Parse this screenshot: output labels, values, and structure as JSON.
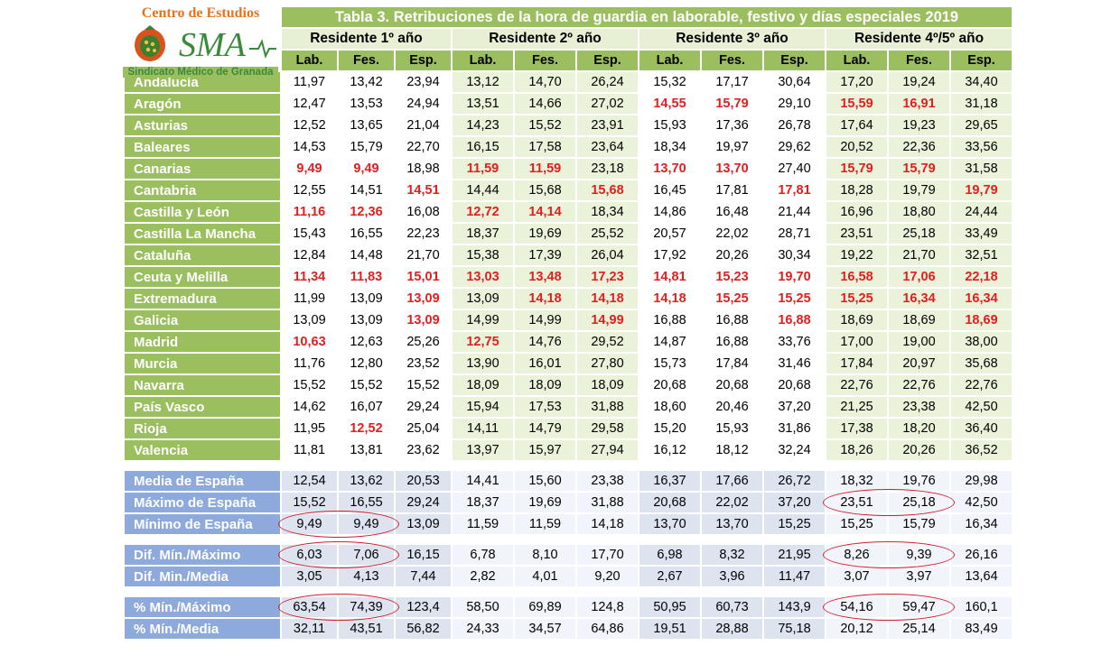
{
  "logo": {
    "top_text": "Centro de Estudios",
    "brand": "SMA",
    "bottom_text": "Sindicato Médico de Granada"
  },
  "title": "Tabla 3. Retribuciones de la hora de guardia en laborable, festivo y días especiales 2019",
  "groups": [
    "Residente 1º año",
    "Residente 2º año",
    "Residente 3º año",
    "Residente 4º/5º año"
  ],
  "subheaders": [
    "Lab.",
    "Fes.",
    "Esp."
  ],
  "colors": {
    "green": "#9bbf5e",
    "light_green": "#eaf2da",
    "blue": "#8ea9db",
    "light_blue": "#dde4f0",
    "red_value": "#e02020",
    "circle": "#d02030"
  },
  "rows": [
    {
      "region": "Andalucía",
      "values": [
        "11,97",
        "13,42",
        "23,94",
        "13,12",
        "14,70",
        "26,24",
        "15,32",
        "17,17",
        "30,64",
        "17,20",
        "19,24",
        "34,40"
      ],
      "red": []
    },
    {
      "region": "Aragón",
      "values": [
        "12,47",
        "13,53",
        "24,94",
        "13,51",
        "14,66",
        "27,02",
        "14,55",
        "15,79",
        "29,10",
        "15,59",
        "16,91",
        "31,18"
      ],
      "red": [
        6,
        7,
        9,
        10
      ]
    },
    {
      "region": "Asturias",
      "values": [
        "12,52",
        "13,65",
        "21,04",
        "14,23",
        "15,52",
        "23,91",
        "15,93",
        "17,36",
        "26,78",
        "17,64",
        "19,23",
        "29,65"
      ],
      "red": []
    },
    {
      "region": "Baleares",
      "values": [
        "14,53",
        "15,79",
        "22,70",
        "16,15",
        "17,58",
        "23,64",
        "18,34",
        "19,97",
        "29,62",
        "20,52",
        "22,36",
        "33,56"
      ],
      "red": []
    },
    {
      "region": "Canarias",
      "values": [
        "9,49",
        "9,49",
        "18,98",
        "11,59",
        "11,59",
        "23,18",
        "13,70",
        "13,70",
        "27,40",
        "15,79",
        "15,79",
        "31,58"
      ],
      "red": [
        0,
        1,
        3,
        4,
        6,
        7,
        9,
        10
      ]
    },
    {
      "region": "Cantabria",
      "values": [
        "12,55",
        "14,51",
        "14,51",
        "14,44",
        "15,68",
        "15,68",
        "16,45",
        "17,81",
        "17,81",
        "18,28",
        "19,79",
        "19,79"
      ],
      "red": [
        2,
        5,
        8,
        11
      ]
    },
    {
      "region": "Castilla y León",
      "values": [
        "11,16",
        "12,36",
        "16,08",
        "12,72",
        "14,14",
        "18,34",
        "14,86",
        "16,48",
        "21,44",
        "16,96",
        "18,80",
        "24,44"
      ],
      "red": [
        0,
        1,
        3,
        4
      ]
    },
    {
      "region": "Castilla La Mancha",
      "values": [
        "15,43",
        "16,55",
        "22,23",
        "18,37",
        "19,69",
        "25,52",
        "20,57",
        "22,02",
        "28,71",
        "23,51",
        "25,18",
        "33,49"
      ],
      "red": []
    },
    {
      "region": "Cataluña",
      "values": [
        "12,84",
        "14,48",
        "21,70",
        "15,38",
        "17,39",
        "26,04",
        "17,92",
        "20,26",
        "30,34",
        "19,22",
        "21,70",
        "32,51"
      ],
      "red": []
    },
    {
      "region": "Ceuta y Melilla",
      "values": [
        "11,34",
        "11,83",
        "15,01",
        "13,03",
        "13,48",
        "17,23",
        "14,81",
        "15,23",
        "19,70",
        "16,58",
        "17,06",
        "22,18"
      ],
      "red": [
        0,
        1,
        2,
        3,
        4,
        5,
        6,
        7,
        8,
        9,
        10,
        11
      ]
    },
    {
      "region": "Extremadura",
      "values": [
        "11,99",
        "13,09",
        "13,09",
        "13,09",
        "14,18",
        "14,18",
        "14,18",
        "15,25",
        "15,25",
        "15,25",
        "16,34",
        "16,34"
      ],
      "red": [
        2,
        4,
        5,
        6,
        7,
        8,
        9,
        10,
        11
      ]
    },
    {
      "region": "Galicia",
      "values": [
        "13,09",
        "13,09",
        "13,09",
        "14,99",
        "14,99",
        "14,99",
        "16,88",
        "16,88",
        "16,88",
        "18,69",
        "18,69",
        "18,69"
      ],
      "red": [
        2,
        5,
        8,
        11
      ]
    },
    {
      "region": "Madrid",
      "values": [
        "10,63",
        "12,63",
        "25,26",
        "12,75",
        "14,76",
        "29,52",
        "14,87",
        "16,88",
        "33,76",
        "17,00",
        "19,00",
        "38,00"
      ],
      "red": [
        0,
        3
      ]
    },
    {
      "region": "Murcia",
      "values": [
        "11,76",
        "12,80",
        "23,52",
        "13,90",
        "16,01",
        "27,80",
        "15,73",
        "17,84",
        "31,46",
        "17,84",
        "20,97",
        "35,68"
      ],
      "red": []
    },
    {
      "region": "Navarra",
      "values": [
        "15,52",
        "15,52",
        "15,52",
        "18,09",
        "18,09",
        "18,09",
        "20,68",
        "20,68",
        "20,68",
        "22,76",
        "22,76",
        "22,76"
      ],
      "red": []
    },
    {
      "region": "País Vasco",
      "values": [
        "14,62",
        "16,07",
        "29,24",
        "15,94",
        "17,53",
        "31,88",
        "18,60",
        "20,46",
        "37,20",
        "21,25",
        "23,38",
        "42,50"
      ],
      "red": []
    },
    {
      "region": "Rioja",
      "values": [
        "11,95",
        "12,52",
        "25,04",
        "14,11",
        "14,79",
        "29,58",
        "15,20",
        "15,93",
        "31,86",
        "17,38",
        "18,20",
        "36,40"
      ],
      "red": [
        1
      ]
    },
    {
      "region": "Valencia",
      "values": [
        "11,81",
        "13,81",
        "23,62",
        "13,97",
        "15,97",
        "27,94",
        "16,12",
        "18,12",
        "32,24",
        "18,26",
        "20,26",
        "36,52"
      ],
      "red": []
    }
  ],
  "summary_a": [
    {
      "label": "Media de España",
      "values": [
        "12,54",
        "13,62",
        "20,53",
        "14,41",
        "15,60",
        "23,38",
        "16,37",
        "17,66",
        "26,72",
        "18,32",
        "19,76",
        "29,98"
      ],
      "circled": []
    },
    {
      "label": "Máximo de España",
      "values": [
        "15,52",
        "16,55",
        "29,24",
        "18,37",
        "19,69",
        "31,88",
        "20,68",
        "22,02",
        "37,20",
        "23,51",
        "25,18",
        "42,50"
      ],
      "circled": [
        9
      ]
    },
    {
      "label": "Mínimo de España",
      "values": [
        "9,49",
        "9,49",
        "13,09",
        "11,59",
        "11,59",
        "14,18",
        "13,70",
        "13,70",
        "15,25",
        "15,25",
        "15,79",
        "16,34"
      ],
      "circled": [
        0
      ]
    }
  ],
  "summary_b": [
    {
      "label": "Dif. Mín./Máximo",
      "values": [
        "6,03",
        "7,06",
        "16,15",
        "6,78",
        "8,10",
        "17,70",
        "6,98",
        "8,32",
        "21,95",
        "8,26",
        "9,39",
        "26,16"
      ],
      "circled": [
        0,
        9
      ]
    },
    {
      "label": "Dif. Min./Media",
      "values": [
        "3,05",
        "4,13",
        "7,44",
        "2,82",
        "4,01",
        "9,20",
        "2,67",
        "3,96",
        "11,47",
        "3,07",
        "3,97",
        "13,64"
      ],
      "circled": []
    }
  ],
  "summary_c": [
    {
      "label": "% Mín./Máximo",
      "values": [
        "63,54",
        "74,39",
        "123,4",
        "58,50",
        "69,89",
        "124,8",
        "50,95",
        "60,73",
        "143,9",
        "54,16",
        "59,47",
        "160,1"
      ],
      "circled": [
        0,
        9
      ]
    },
    {
      "label": "% Mín./Media",
      "values": [
        "32,11",
        "43,51",
        "56,82",
        "24,33",
        "34,57",
        "64,86",
        "19,51",
        "28,88",
        "75,18",
        "20,12",
        "25,14",
        "83,49"
      ],
      "circled": []
    }
  ]
}
